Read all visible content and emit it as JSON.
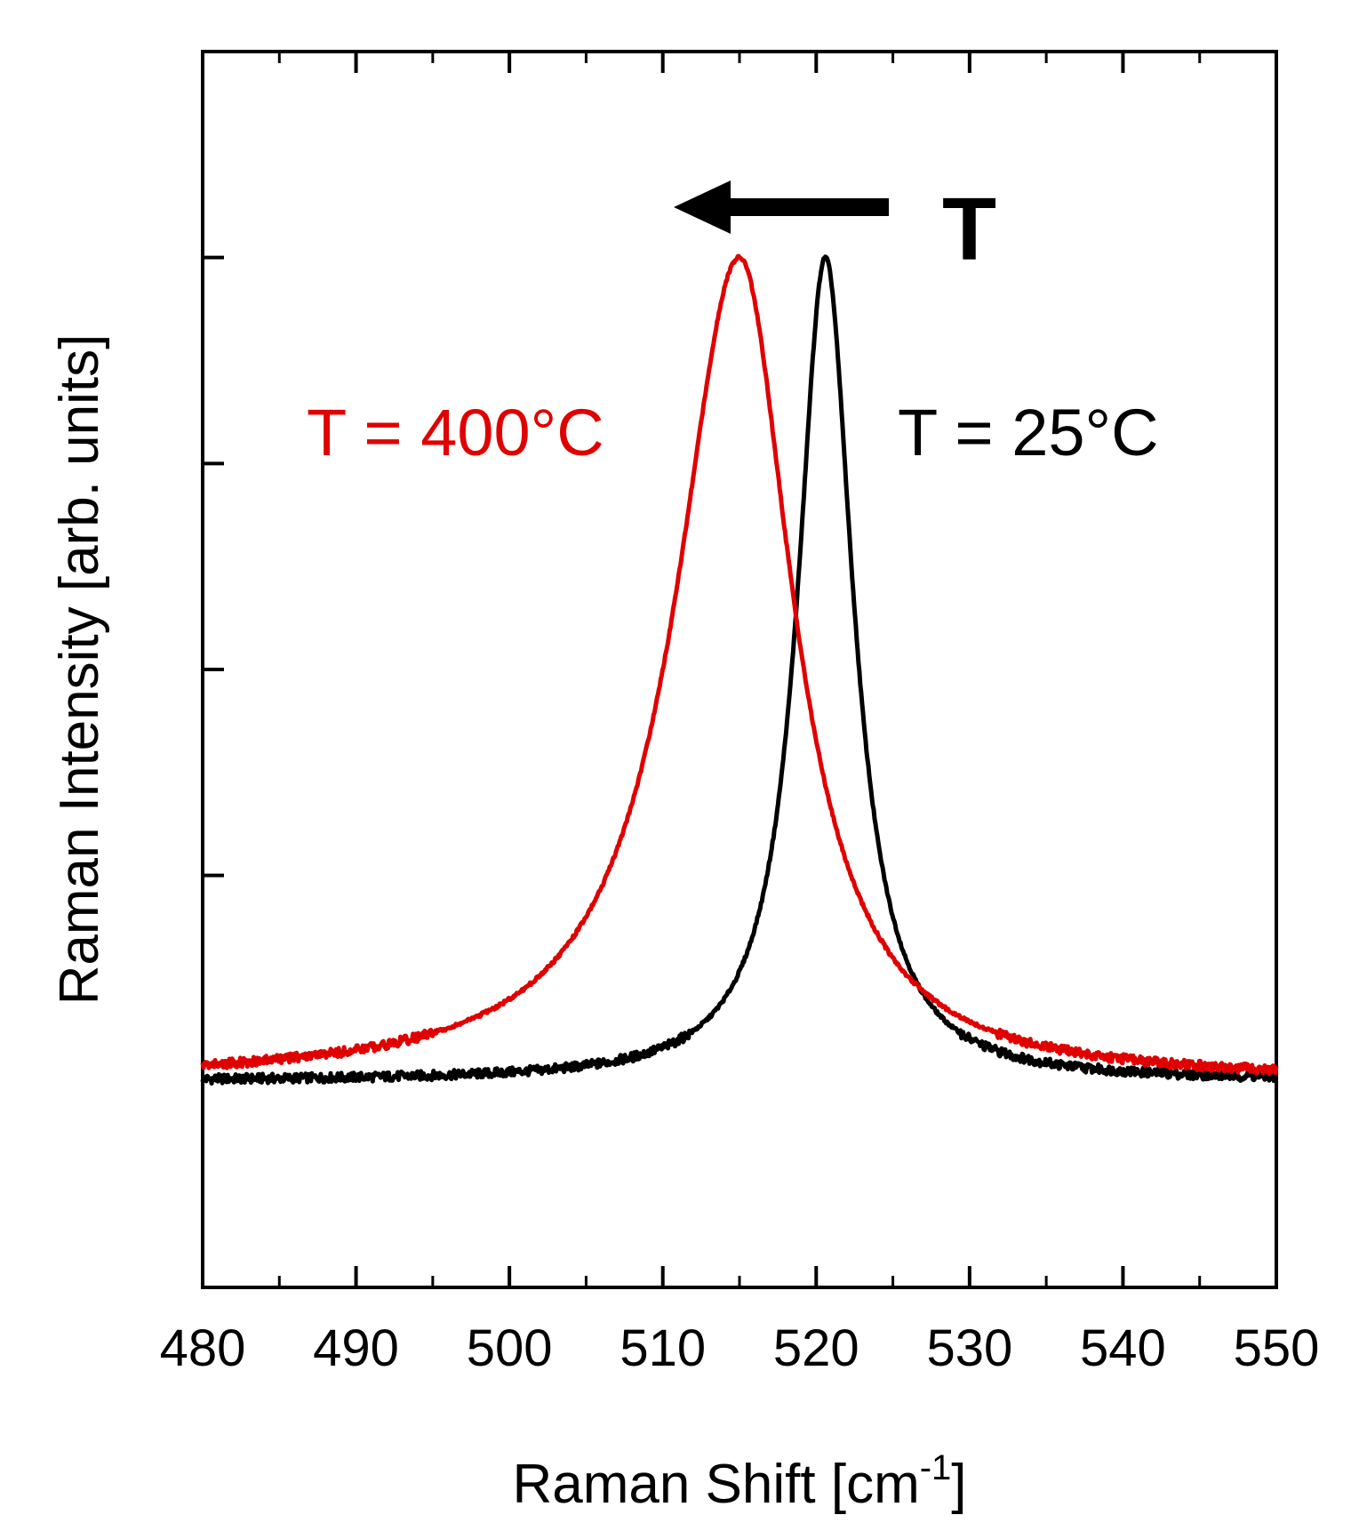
{
  "chart_data": {
    "type": "line",
    "title": "",
    "xlabel": "Raman Shift [cm",
    "xlabel_sup": "-1",
    "xlabel_close": "]",
    "ylabel": "Raman Intensity [arb. units]",
    "xlim": [
      480,
      550
    ],
    "ylim": [
      -0.2,
      1.0
    ],
    "x_ticks": [
      480,
      490,
      500,
      510,
      520,
      530,
      540,
      550
    ],
    "x_tick_labels": [
      "480",
      "490",
      "500",
      "510",
      "520",
      "530",
      "540",
      "550"
    ],
    "x_minor_ticks": [
      485,
      495,
      505,
      515,
      525,
      535,
      545
    ],
    "y_ticks": [
      0.2,
      0.4,
      0.6,
      0.8
    ],
    "grid": false,
    "series": [
      {
        "name": "T = 25°C",
        "color": "#000000",
        "peak_center": 520.6,
        "peak_height": 0.8,
        "half_width": 2.2,
        "baseline": 0.0
      },
      {
        "name": "T = 400°C",
        "color": "#e00000",
        "peak_center": 515.0,
        "peak_height": 0.8,
        "half_width_left": 5.0,
        "half_width_right": 4.2,
        "baseline": 0.0
      }
    ],
    "annotations": {
      "label_400": "T = 400°C",
      "label_400_color": "#e00000",
      "label_25": "T = 25°C",
      "label_25_color": "#000000",
      "arrow_label": "T"
    }
  }
}
